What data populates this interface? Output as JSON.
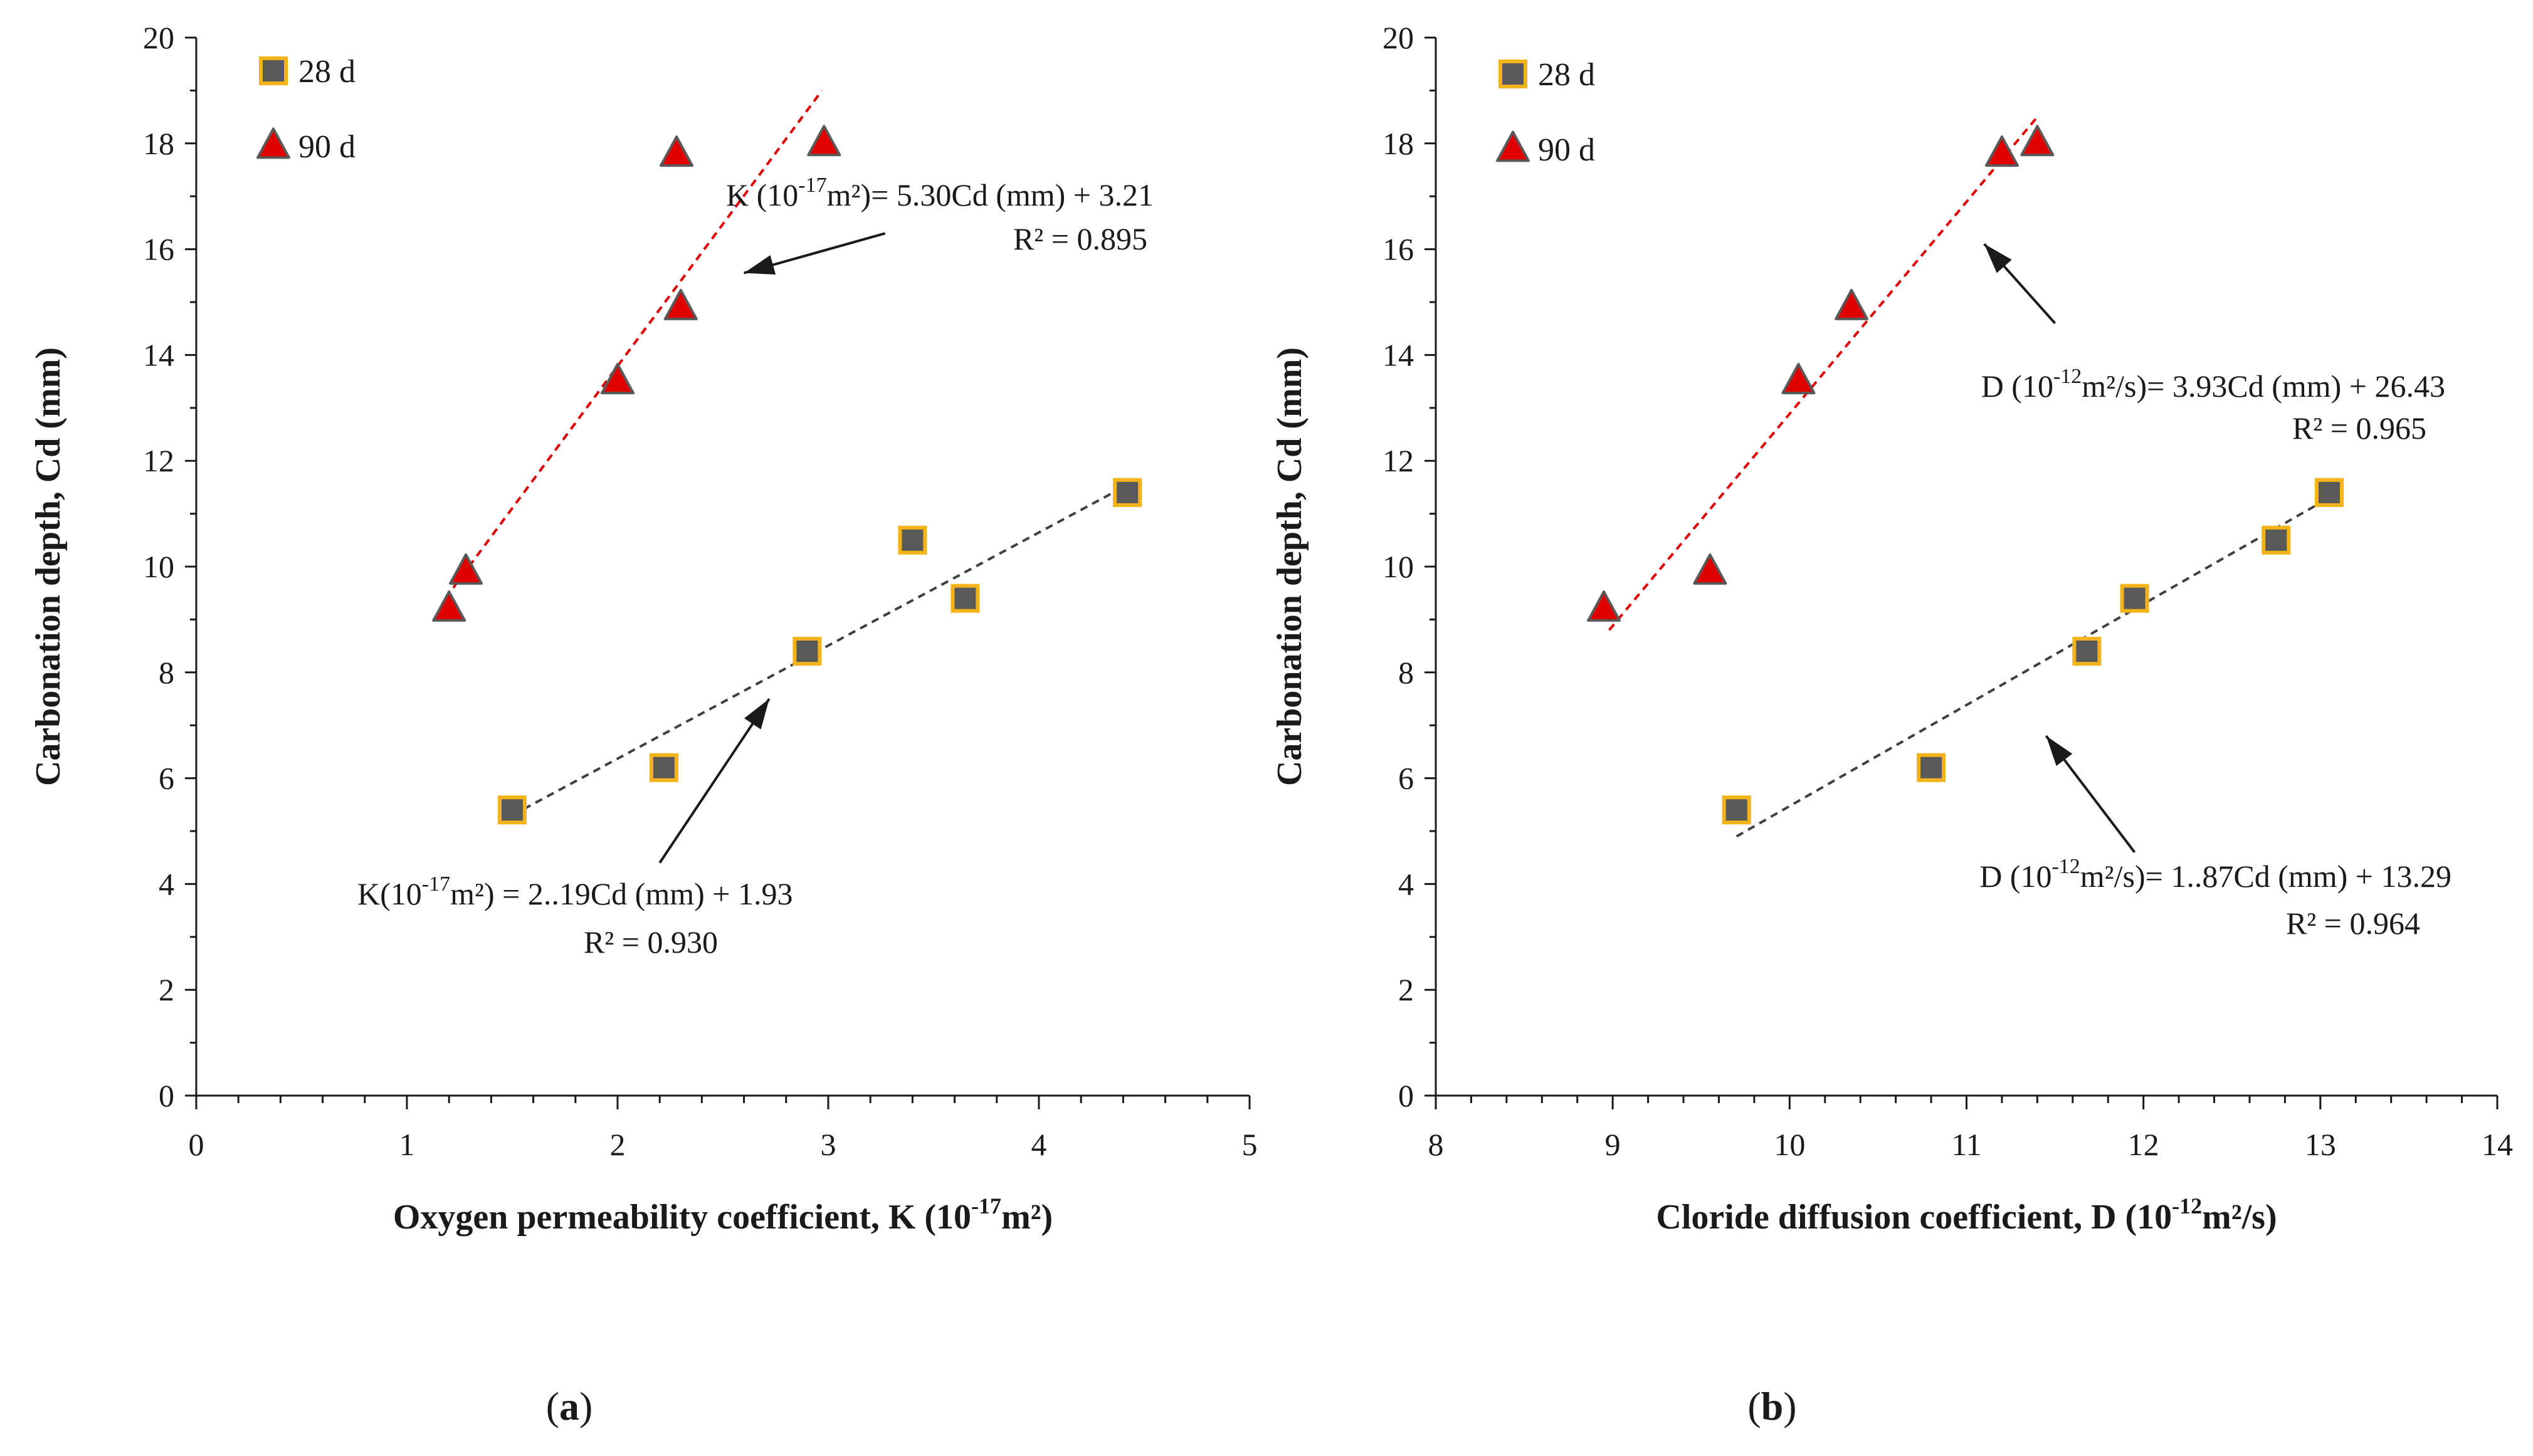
{
  "chart_data": [
    {
      "type": "scatter",
      "panel_label": "a",
      "xlabel_main": "Oxygen permeability coefficient, K (10",
      "xlabel_sup": "-17",
      "xlabel_end": "m²)",
      "ylabel": "Carbonation depth, Cd (mm)",
      "xlim": [
        0,
        5
      ],
      "ylim": [
        0,
        20
      ],
      "xticks": [
        0,
        1,
        2,
        3,
        4,
        5
      ],
      "yticks": [
        0,
        2,
        4,
        6,
        8,
        10,
        12,
        14,
        16,
        18,
        20
      ],
      "legend_position": "top-left",
      "series": [
        {
          "name": "28 d",
          "marker": "square",
          "fill": "#595959",
          "edge": "#f2b418",
          "points": [
            [
              1.5,
              5.4
            ],
            [
              2.22,
              6.2
            ],
            [
              2.9,
              8.4
            ],
            [
              3.4,
              10.5
            ],
            [
              3.65,
              9.4
            ],
            [
              4.42,
              11.4
            ]
          ],
          "trend": {
            "x": [
              1.5,
              4.4
            ],
            "y": [
              5.3,
              11.5
            ],
            "color": "#404040"
          }
        },
        {
          "name": "90 d",
          "marker": "triangle",
          "fill": "#e00000",
          "edge": "#595959",
          "points": [
            [
              1.2,
              9.2
            ],
            [
              1.28,
              9.9
            ],
            [
              2.0,
              13.5
            ],
            [
              2.3,
              14.9
            ],
            [
              2.28,
              17.8
            ],
            [
              2.98,
              18.0
            ]
          ],
          "trend": {
            "x": [
              1.22,
              2.97
            ],
            "y": [
              9.6,
              19.0
            ],
            "color": "#e00000"
          }
        }
      ],
      "annotations": [
        {
          "name": "annotation-90d",
          "sup_text": "-17",
          "line1_pre": "K (10",
          "line1_post": "m²)= 5.30Cd (mm) + 3.21",
          "line2": "R² = 0.895",
          "arrow_from": [
            3.27,
            16.3
          ],
          "arrow_to": [
            2.6,
            15.55
          ]
        },
        {
          "name": "annotation-28d",
          "sup_text": "-17",
          "line1_pre": "K(10",
          "line1_post": "m²)  = 2..19Cd (mm) + 1.93",
          "line2": "R² = 0.930",
          "arrow_from": [
            2.2,
            4.4
          ],
          "arrow_to": [
            2.72,
            7.5
          ]
        }
      ]
    },
    {
      "type": "scatter",
      "panel_label": "b",
      "xlabel_main": "Cloride diffusion coefficient, D (10",
      "xlabel_sup": "-12",
      "xlabel_end": "m²/s)",
      "ylabel": "Carbonation depth, Cd (mm)",
      "xlim": [
        8,
        14
      ],
      "ylim": [
        0,
        20
      ],
      "xticks": [
        8,
        9,
        10,
        11,
        12,
        13,
        14
      ],
      "yticks": [
        0,
        2,
        4,
        6,
        8,
        10,
        12,
        14,
        16,
        18,
        20
      ],
      "legend_position": "top-left",
      "series": [
        {
          "name": "28 d",
          "marker": "square",
          "fill": "#595959",
          "edge": "#f2b418",
          "points": [
            [
              9.7,
              5.4
            ],
            [
              10.8,
              6.2
            ],
            [
              11.68,
              8.4
            ],
            [
              11.95,
              9.4
            ],
            [
              12.75,
              10.5
            ],
            [
              13.05,
              11.4
            ]
          ],
          "trend": {
            "x": [
              9.7,
              13.05
            ],
            "y": [
              4.9,
              11.3
            ],
            "color": "#404040"
          }
        },
        {
          "name": "90 d",
          "marker": "triangle",
          "fill": "#e00000",
          "edge": "#595959",
          "points": [
            [
              8.95,
              9.2
            ],
            [
              9.55,
              9.9
            ],
            [
              10.05,
              13.5
            ],
            [
              10.35,
              14.9
            ],
            [
              11.2,
              17.8
            ],
            [
              11.4,
              18.0
            ]
          ],
          "trend": {
            "x": [
              8.98,
              11.4
            ],
            "y": [
              8.8,
              18.5
            ],
            "color": "#e00000"
          }
        }
      ],
      "annotations": [
        {
          "name": "annotation-90d",
          "sup_text": "-12",
          "line1_pre": "D (10",
          "line1_post": "m²/s)= 3.93Cd (mm) + 26.43",
          "line2": "R² = 0.965",
          "arrow_from": [
            11.5,
            14.6
          ],
          "arrow_to": [
            11.1,
            16.1
          ]
        },
        {
          "name": "annotation-28d",
          "sup_text": "-12",
          "line1_pre": "D (10",
          "line1_post": "m²/s)= 1..87Cd (mm) + 13.29",
          "line2": "R² = 0.964",
          "arrow_from": [
            11.95,
            4.6
          ],
          "arrow_to": [
            11.45,
            6.8
          ]
        }
      ]
    }
  ]
}
